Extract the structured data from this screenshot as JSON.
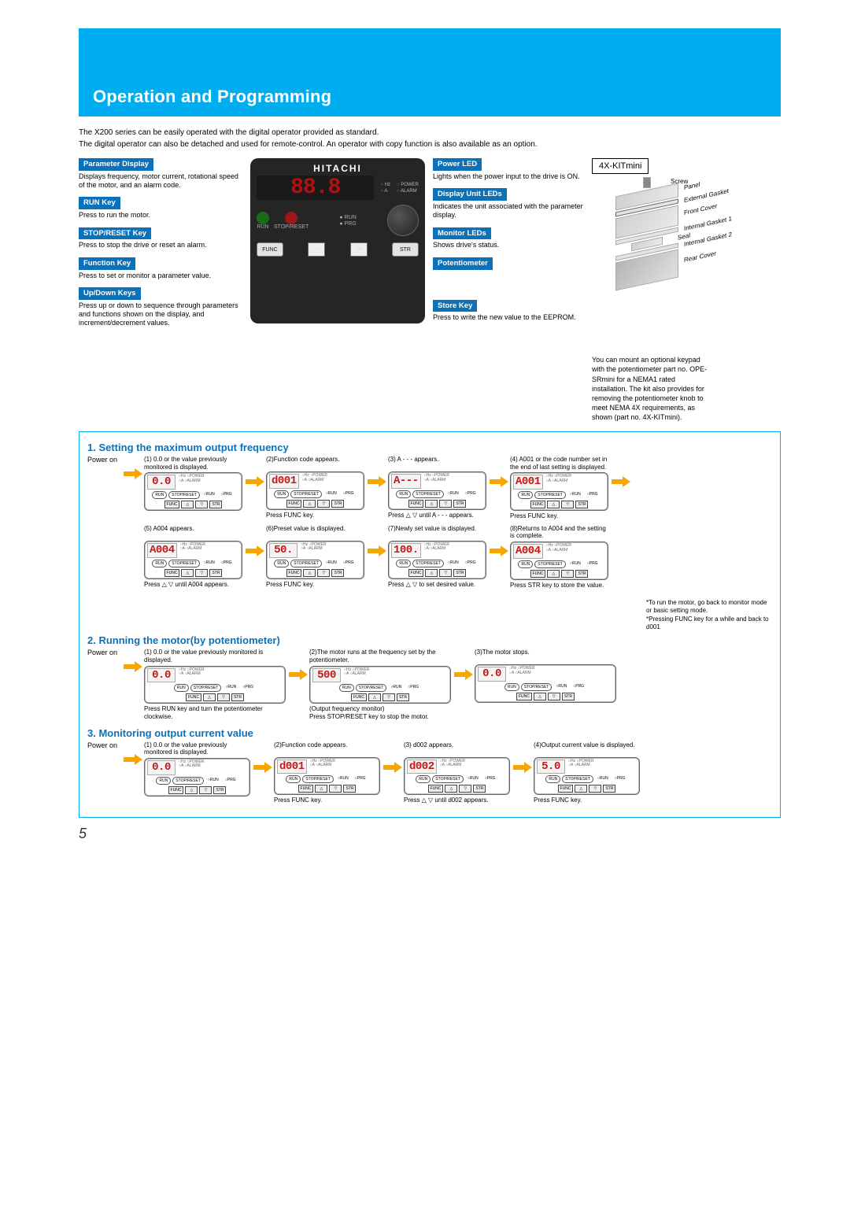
{
  "page": {
    "title": "Operation and Programming",
    "intro": "The X200 series can be easily operated with the digital operator provided as standard.\nThe digital operator can also be detached and used for remote-control. An operator with copy function is also available as an option.",
    "pageNumber": "5"
  },
  "operator": {
    "brand": "HITACHI",
    "display": "88.8",
    "leds": {
      "hz": "Hz",
      "a": "A",
      "power": "POWER",
      "alarm": "ALARM"
    },
    "midLabels": {
      "run": "RUN",
      "stopReset": "STOP/RESET",
      "runLed": "RUN",
      "prg": "PRG"
    },
    "bottom": {
      "func": "FUNC",
      "up": "1",
      "down": "2",
      "str": "STR"
    }
  },
  "leftLabels": [
    {
      "title": "Parameter Display",
      "desc": "Displays frequency, motor current, rotational speed of the motor, and an alarm code."
    },
    {
      "title": "RUN Key",
      "desc": "Press to run the motor."
    },
    {
      "title": "STOP/RESET Key",
      "desc": "Press to stop the drive or reset an alarm."
    },
    {
      "title": "Function Key",
      "desc": "Press to set or monitor a parameter value."
    },
    {
      "title": "Up/Down Keys",
      "desc": "Press up or down to sequence through parameters and functions shown on the display, and increment/decrement values."
    }
  ],
  "rightLabels": [
    {
      "title": "Power LED",
      "desc": "Lights when the power input to the drive is ON."
    },
    {
      "title": "Display Unit LEDs",
      "desc": "Indicates the unit associated with the parameter display."
    },
    {
      "title": "Monitor LEDs",
      "desc": "Shows drive's status."
    },
    {
      "title": "Potentiometer",
      "desc": ""
    },
    {
      "title": "Store Key",
      "desc": "Press to write the new value to the EEPROM."
    }
  ],
  "kit": {
    "title": "4X-KITmini",
    "parts": [
      "Screw",
      "Panel",
      "External Gasket",
      "Front Cover",
      "Internal Gasket 1",
      "Seal",
      "Internal Gasket 2",
      "Rear Cover"
    ],
    "desc": "You can mount an optional keypad with the potentiometer part no. OPE-SRmini for a NEMA1 rated installation. The kit also provides for removing the potentiometer knob to meet NEMA 4X requirements, as shown (part no. 4X-KITmini)."
  },
  "section1": {
    "title": "1. Setting the maximum output frequency",
    "rowA": [
      {
        "caption": "(1) 0.0 or the value previously monitored is displayed.",
        "seg": "0.0",
        "action": ""
      },
      {
        "caption": "(2)Function code appears.",
        "seg": "d001",
        "action": "Press FUNC key."
      },
      {
        "caption": "(3) A - - - appears.",
        "seg": "A---",
        "action": "Press △ ▽ until A - - - appears."
      },
      {
        "caption": "(4) A001 or the code number set in the end of last setting is displayed.",
        "seg": "A001",
        "action": "Press FUNC key."
      }
    ],
    "rowB": [
      {
        "caption": "(5) A004 appears.",
        "seg": "A004",
        "action": "Press △ ▽ until A004 appears."
      },
      {
        "caption": "(6)Preset value is displayed.",
        "seg": "50.",
        "action": "Press FUNC key."
      },
      {
        "caption": "(7)Newly set value is displayed.",
        "seg": "100.",
        "action": "Press △ ▽ to set desired value."
      },
      {
        "caption": "(8)Returns to A004 and the setting is complete.",
        "seg": "A004",
        "action": "Press STR key to store the value."
      }
    ],
    "footnote": "*To run the motor, go back to monitor mode or basic setting mode.\n*Pressing FUNC key for a while and back to d001"
  },
  "section2": {
    "title": "2. Running the motor(by potentiometer)",
    "row": [
      {
        "caption": "(1) 0.0 or the value previously monitored is displayed.",
        "seg": "0.0",
        "action": "Press RUN key and turn the potentiometer clockwise."
      },
      {
        "caption": "(2)The motor runs at the frequency set by the potentiometer.",
        "seg": "500",
        "action": "(Output frequency monitor)",
        "action2": "Press STOP/RESET key to stop the motor."
      },
      {
        "caption": "(3)The motor stops.",
        "seg": "0.0",
        "action": ""
      }
    ]
  },
  "section3": {
    "title": "3. Monitoring output current value",
    "row": [
      {
        "caption": "(1) 0.0 or the value previously monitored is displayed.",
        "seg": "0.0",
        "action": ""
      },
      {
        "caption": "(2)Function code appears.",
        "seg": "d001",
        "action": "Press FUNC key."
      },
      {
        "caption": "(3) d002 appears.",
        "seg": "d002",
        "action": "Press △ ▽ until d002 appears."
      },
      {
        "caption": "(4)Output current value is displayed.",
        "seg": "5.0",
        "action": "Press FUNC key."
      }
    ]
  },
  "powerOn": "Power on",
  "miniLeds": "○Hz ○POWER\n○A  ○ALARM",
  "miniBtns": {
    "run": "RUN",
    "stop": "STOP/RESET",
    "runL": "○RUN",
    "prg": "○PRG",
    "func": "FUNC",
    "str": "STR"
  }
}
